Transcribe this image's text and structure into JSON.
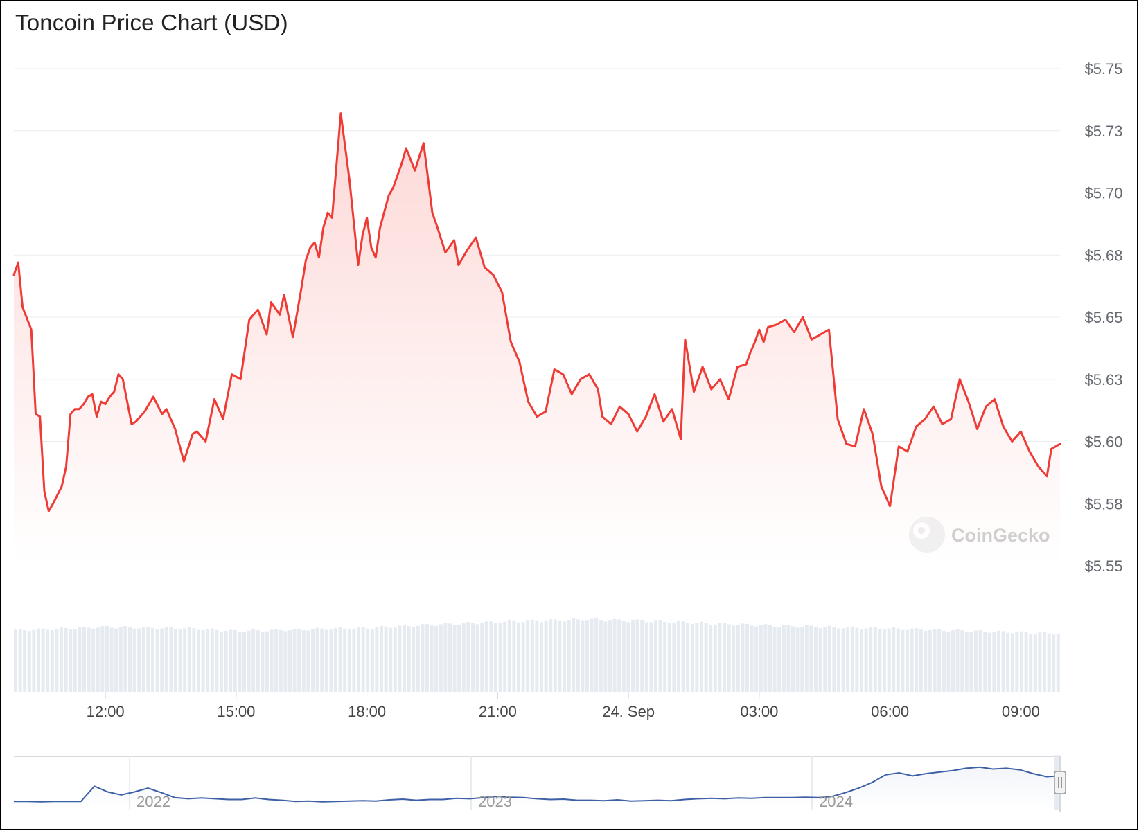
{
  "title": "Toncoin Price Chart (USD)",
  "watermark": "CoinGecko",
  "colors": {
    "line": "#ef3b36",
    "fill_top": "#fcd6d4",
    "grid": "#e8ecf0",
    "volume": "#e6ebf1",
    "navigator": "#3d5fa6",
    "axis_text": "#666a70"
  },
  "chart_data": {
    "type": "line",
    "title": "Toncoin Price Chart (USD)",
    "xlabel": "",
    "ylabel": "",
    "ylim": [
      5.55,
      5.75
    ],
    "yticks": [
      "$5.55",
      "$5.58",
      "$5.60",
      "$5.63",
      "$5.65",
      "$5.68",
      "$5.70",
      "$5.73",
      "$5.75"
    ],
    "xticks": [
      "12:00",
      "15:00",
      "18:00",
      "21:00",
      "24. Sep",
      "03:00",
      "06:00",
      "09:00"
    ],
    "x_start_hours": 9.9,
    "x_end_hours": 33.9,
    "grid": true,
    "legend": "none",
    "series": [
      {
        "x": [
          9.9,
          10.0,
          10.1,
          10.3,
          10.4,
          10.5,
          10.6,
          10.7,
          10.8,
          11.0,
          11.1,
          11.2,
          11.3,
          11.4,
          11.5,
          11.6,
          11.7,
          11.8,
          11.9,
          12.0,
          12.1,
          12.2,
          12.3,
          12.4,
          12.6,
          12.7,
          12.9,
          13.1,
          13.3,
          13.4,
          13.6,
          13.8,
          14.0,
          14.1,
          14.3,
          14.5,
          14.7,
          14.9,
          15.1,
          15.3,
          15.5,
          15.7,
          15.8,
          16.0,
          16.1,
          16.3,
          16.4,
          16.5,
          16.6,
          16.7,
          16.8,
          16.9,
          17.0,
          17.1,
          17.2,
          17.4,
          17.6,
          17.8,
          17.9,
          18.0,
          18.1,
          18.2,
          18.3,
          18.5,
          18.6,
          18.8,
          18.9,
          19.1,
          19.3,
          19.5,
          19.6,
          19.8,
          20.0,
          20.1,
          20.3,
          20.5,
          20.7,
          20.9,
          21.1,
          21.3,
          21.5,
          21.7,
          21.9,
          22.1,
          22.3,
          22.5,
          22.7,
          22.9,
          23.1,
          23.3,
          23.4,
          23.6,
          23.8,
          24.0,
          24.2,
          24.4,
          24.6,
          24.8,
          25.0,
          25.2,
          25.3,
          25.5,
          25.7,
          25.9,
          26.1,
          26.3,
          26.5,
          26.7,
          26.8,
          26.9,
          27.0,
          27.1,
          27.2,
          27.4,
          27.6,
          27.8,
          28.0,
          28.2,
          28.4,
          28.6,
          28.8,
          29.0,
          29.2,
          29.4,
          29.6,
          29.8,
          30.0,
          30.2,
          30.4,
          30.6,
          30.8,
          31.0,
          31.2,
          31.4,
          31.6,
          31.8,
          32.0,
          32.2,
          32.4,
          32.6,
          32.8,
          33.0,
          33.2,
          33.4,
          33.6,
          33.7,
          33.9
        ],
        "y": [
          5.667,
          5.672,
          5.654,
          5.645,
          5.611,
          5.61,
          5.58,
          5.572,
          5.575,
          5.582,
          5.59,
          5.611,
          5.613,
          5.613,
          5.615,
          5.618,
          5.619,
          5.61,
          5.616,
          5.615,
          5.618,
          5.62,
          5.627,
          5.625,
          5.607,
          5.608,
          5.612,
          5.618,
          5.611,
          5.613,
          5.605,
          5.592,
          5.603,
          5.604,
          5.6,
          5.617,
          5.609,
          5.627,
          5.625,
          5.649,
          5.653,
          5.643,
          5.656,
          5.651,
          5.659,
          5.642,
          5.652,
          5.662,
          5.673,
          5.678,
          5.68,
          5.674,
          5.686,
          5.692,
          5.69,
          5.732,
          5.705,
          5.671,
          5.683,
          5.69,
          5.678,
          5.674,
          5.686,
          5.699,
          5.702,
          5.712,
          5.718,
          5.709,
          5.72,
          5.692,
          5.687,
          5.676,
          5.681,
          5.671,
          5.677,
          5.682,
          5.67,
          5.667,
          5.66,
          5.64,
          5.632,
          5.616,
          5.61,
          5.612,
          5.629,
          5.627,
          5.619,
          5.625,
          5.627,
          5.621,
          5.61,
          5.607,
          5.614,
          5.611,
          5.604,
          5.61,
          5.619,
          5.608,
          5.613,
          5.601,
          5.641,
          5.62,
          5.63,
          5.621,
          5.625,
          5.617,
          5.63,
          5.631,
          5.636,
          5.64,
          5.645,
          5.64,
          5.646,
          5.647,
          5.649,
          5.644,
          5.65,
          5.641,
          5.643,
          5.645,
          5.609,
          5.599,
          5.598,
          5.613,
          5.603,
          5.582,
          5.574,
          5.598,
          5.596,
          5.606,
          5.609,
          5.614,
          5.607,
          5.609,
          5.625,
          5.616,
          5.605,
          5.614,
          5.617,
          5.606,
          5.6,
          5.604,
          5.596,
          5.59,
          5.586,
          5.597,
          5.599
        ],
        "name": ""
      }
    ],
    "volume": {
      "note_values_relative": true,
      "x": [
        9.9,
        12.0,
        14.0,
        15.0,
        18.0,
        20.0,
        21.5,
        23.0,
        24.5,
        27.0,
        30.0,
        33.9
      ],
      "y": [
        0.74,
        0.78,
        0.76,
        0.73,
        0.77,
        0.82,
        0.85,
        0.87,
        0.85,
        0.8,
        0.76,
        0.7
      ]
    },
    "navigator": {
      "xticks": [
        "2022",
        "2023",
        "2024"
      ],
      "y": [
        0.05,
        0.05,
        0.04,
        0.05,
        0.05,
        0.05,
        0.45,
        0.3,
        0.22,
        0.3,
        0.4,
        0.28,
        0.15,
        0.12,
        0.14,
        0.12,
        0.1,
        0.1,
        0.14,
        0.1,
        0.08,
        0.05,
        0.06,
        0.04,
        0.05,
        0.06,
        0.07,
        0.06,
        0.09,
        0.11,
        0.08,
        0.1,
        0.1,
        0.13,
        0.12,
        0.15,
        0.18,
        0.16,
        0.15,
        0.12,
        0.1,
        0.11,
        0.08,
        0.08,
        0.07,
        0.09,
        0.06,
        0.07,
        0.08,
        0.07,
        0.1,
        0.12,
        0.13,
        0.12,
        0.14,
        0.13,
        0.15,
        0.15,
        0.15,
        0.16,
        0.15,
        0.18,
        0.28,
        0.4,
        0.55,
        0.75,
        0.8,
        0.72,
        0.78,
        0.82,
        0.86,
        0.92,
        0.95,
        0.9,
        0.92,
        0.88,
        0.78,
        0.7,
        0.72
      ]
    }
  }
}
